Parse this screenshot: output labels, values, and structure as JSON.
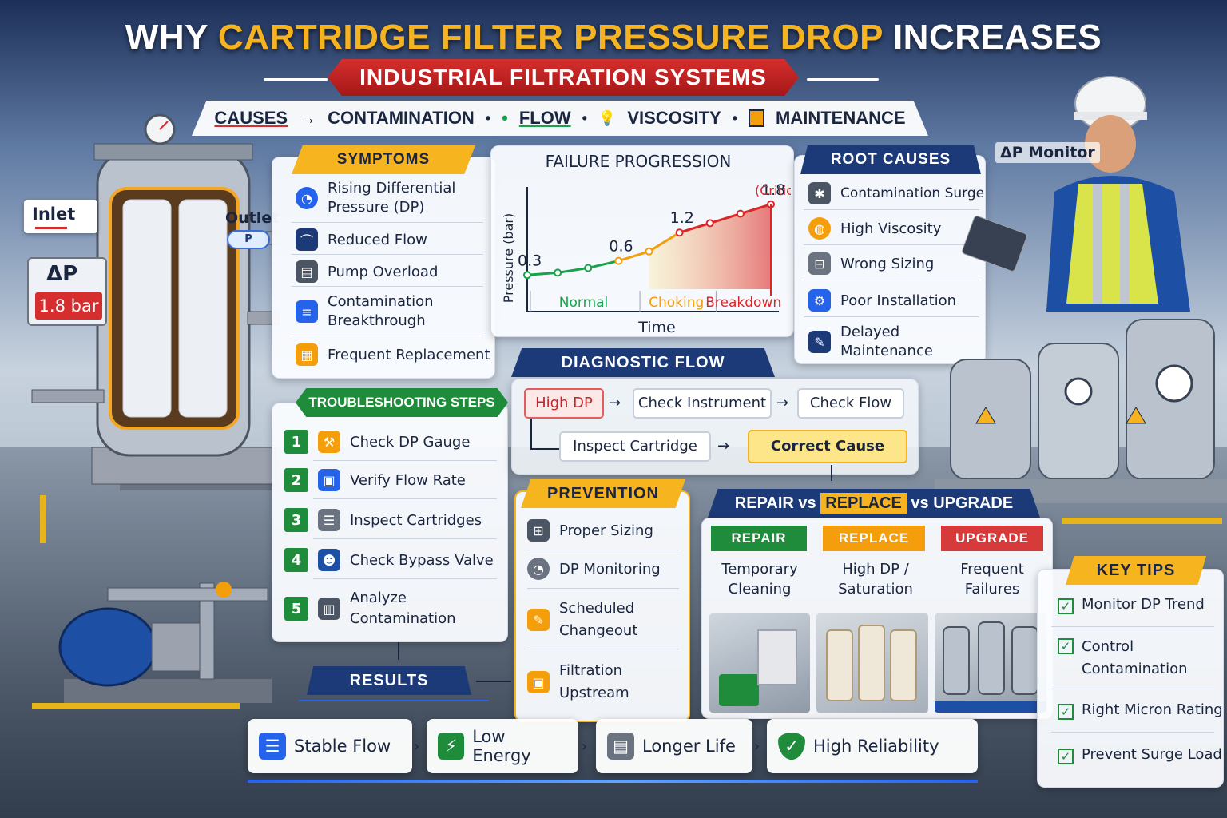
{
  "title": {
    "prefix": "WHY ",
    "highlight": "CARTRIDGE FILTER PRESSURE DROP",
    "suffix": " INCREASES"
  },
  "subtitle": "INDUSTRIAL FILTRATION SYSTEMS",
  "causes_bar": {
    "label": "CAUSES",
    "arrow": "→",
    "items": [
      "CONTAMINATION",
      "FLOW",
      "VISCOSITY",
      "MAINTENANCE"
    ]
  },
  "left_equipment": {
    "inlet": "Inlet",
    "outlet": "Outlet",
    "dp_symbol": "ΔP",
    "dp_value": "1.8 bar"
  },
  "symptoms": {
    "title": "SYMPTOMS",
    "items": [
      "Rising Differential Pressure (DP)",
      "Reduced Flow",
      "Pump Overload",
      "Contamination Breakthrough",
      "Frequent Replacement"
    ]
  },
  "chart_data": {
    "type": "line",
    "title": "FAILURE PROGRESSION",
    "xlabel": "Time",
    "ylabel": "Pressure (bar)",
    "x": [
      1,
      2,
      3,
      4,
      5,
      6,
      7,
      8,
      9
    ],
    "values": [
      0.3,
      0.35,
      0.45,
      0.6,
      0.8,
      1.2,
      1.4,
      1.6,
      1.8
    ],
    "point_labels": {
      "0": "0.3",
      "3": "0.6",
      "5": "1.2",
      "8": "1.8"
    },
    "critical_label": "(Critical)",
    "ylim": [
      0,
      2
    ],
    "zones": [
      "Normal",
      "Choking",
      "Breakdown"
    ],
    "colors": {
      "normal": "#16a34a",
      "choking": "#f59e0b",
      "breakdown": "#dc2626"
    }
  },
  "root_causes": {
    "title": "ROOT CAUSES",
    "items": [
      "Contamination Surge",
      "High Viscosity",
      "Wrong Sizing",
      "Poor Installation",
      "Delayed Maintenance"
    ]
  },
  "dp_monitor": "ΔP Monitor",
  "troubleshooting": {
    "title": "TROUBLESHOOTING STEPS",
    "steps": [
      {
        "n": "1",
        "label": "Check DP Gauge"
      },
      {
        "n": "2",
        "label": "Verify Flow Rate"
      },
      {
        "n": "3",
        "label": "Inspect Cartridges"
      },
      {
        "n": "4",
        "label": "Check Bypass Valve"
      },
      {
        "n": "5",
        "label": "Analyze Contamination"
      }
    ]
  },
  "diagnostic": {
    "title": "DIAGNOSTIC FLOW",
    "nodes": [
      "High DP",
      "Check Instrument",
      "Check Flow",
      "Inspect Cartridge",
      "Correct Cause"
    ]
  },
  "prevention": {
    "title": "PREVENTION",
    "items": [
      "Proper Sizing",
      "DP Monitoring",
      "Scheduled Changeout",
      "Filtration Upstream"
    ]
  },
  "rru": {
    "title_parts": [
      "REPAIR vs ",
      "REPLACE",
      " vs UPGRADE"
    ],
    "columns": [
      {
        "tab": "REPAIR",
        "text": "Temporary Cleaning",
        "color": "#1e8c3a"
      },
      {
        "tab": "REPLACE",
        "text": "High DP / Saturation",
        "color": "#f59e0b"
      },
      {
        "tab": "UPGRADE",
        "text": "Frequent Failures",
        "color": "#d63a3a"
      }
    ]
  },
  "key_tips": {
    "title": "KEY TIPS",
    "items": [
      "Monitor DP Trend",
      "Control Contamination",
      "Right Micron Rating",
      "Prevent Surge Load"
    ]
  },
  "results": {
    "title": "RESULTS",
    "items": [
      "Stable Flow",
      "Low Energy",
      "Longer Life",
      "High Reliability"
    ]
  }
}
